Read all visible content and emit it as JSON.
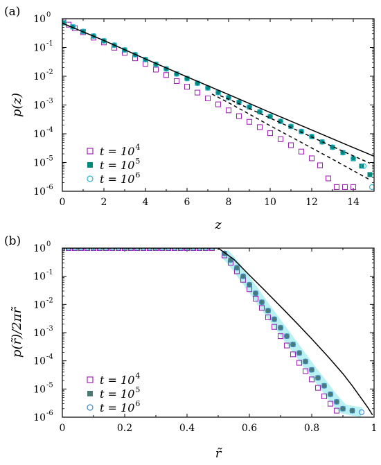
{
  "colors": {
    "purple": "#9c27b0",
    "teal": "#00897b",
    "light_blue": "#29b6d0",
    "slate": "#4a7a78",
    "blue_circle": "#3f88c5",
    "cyan_band": "#7fe6e8",
    "line": "#000000"
  },
  "chart_data": [
    {
      "type": "scatter",
      "panel_label": "(a)",
      "xlabel": "z",
      "ylabel": "p(z)",
      "log_y": true,
      "xlim": [
        0,
        15
      ],
      "ylim_exp": [
        -6,
        0
      ],
      "x_ticks": [
        "0",
        "2",
        "4",
        "6",
        "8",
        "10",
        "12",
        "14"
      ],
      "y_tick_exponents": [
        "0",
        "-1",
        "-2",
        "-3",
        "-4",
        "-5",
        "-6"
      ],
      "legend_position": "bottom-left",
      "series": [
        {
          "name": "t = 10^4",
          "label_base": "t = 10",
          "label_exp": "4",
          "marker": "open-square",
          "color": "purple",
          "points": [
            [
              0.05,
              0.82
            ],
            [
              0.3,
              0.62
            ],
            [
              0.6,
              0.47
            ],
            [
              1.0,
              0.34
            ],
            [
              1.5,
              0.22
            ],
            [
              2.0,
              0.15
            ],
            [
              2.5,
              0.098
            ],
            [
              3.0,
              0.065
            ],
            [
              3.5,
              0.042
            ],
            [
              4.0,
              0.027
            ],
            [
              4.5,
              0.017
            ],
            [
              5.0,
              0.011
            ],
            [
              5.5,
              0.0068
            ],
            [
              6.0,
              0.0043
            ],
            [
              6.5,
              0.0027
            ],
            [
              7.0,
              0.0017
            ],
            [
              7.5,
              0.00105
            ],
            [
              8.0,
              0.00065
            ],
            [
              8.5,
              0.00041
            ],
            [
              9.0,
              0.00026
            ],
            [
              9.5,
              0.00017
            ],
            [
              10.0,
              0.000105
            ],
            [
              10.5,
              6.5e-05
            ],
            [
              11.0,
              4e-05
            ],
            [
              11.5,
              2.4e-05
            ],
            [
              12.0,
              1.4e-05
            ],
            [
              12.4,
              8e-06
            ],
            [
              12.8,
              2.8e-06
            ],
            [
              13.2,
              1.4e-06
            ],
            [
              13.6,
              1.4e-06
            ],
            [
              14.0,
              1.4e-06
            ]
          ]
        },
        {
          "name": "t = 10^5",
          "label_base": "t = 10",
          "label_exp": "5",
          "marker": "filled-square",
          "color": "teal",
          "points": [
            [
              0.05,
              0.72
            ],
            [
              0.5,
              0.52
            ],
            [
              1.0,
              0.36
            ],
            [
              1.5,
              0.25
            ],
            [
              2.0,
              0.17
            ],
            [
              2.5,
              0.12
            ],
            [
              3.0,
              0.082
            ],
            [
              3.5,
              0.056
            ],
            [
              4.0,
              0.038
            ],
            [
              4.5,
              0.026
            ],
            [
              5.0,
              0.018
            ],
            [
              5.5,
              0.012
            ],
            [
              6.0,
              0.0083
            ],
            [
              6.5,
              0.0057
            ],
            [
              7.0,
              0.0039
            ],
            [
              7.5,
              0.0027
            ],
            [
              8.0,
              0.0018
            ],
            [
              8.5,
              0.00125
            ],
            [
              9.0,
              0.00085
            ],
            [
              9.5,
              0.00058
            ],
            [
              10.0,
              0.0004
            ],
            [
              10.5,
              0.00027
            ],
            [
              11.0,
              0.00018
            ],
            [
              11.5,
              0.00012
            ],
            [
              12.0,
              8e-05
            ],
            [
              12.5,
              5.2e-05
            ],
            [
              13.0,
              3.4e-05
            ],
            [
              13.5,
              2.2e-05
            ],
            [
              14.0,
              1.35e-05
            ],
            [
              14.4,
              7.5e-06
            ],
            [
              14.8,
              3.8e-06
            ]
          ]
        },
        {
          "name": "t = 10^6",
          "label_base": "t = 10",
          "label_exp": "6",
          "marker": "open-circle",
          "color": "light_blue",
          "points": [
            [
              0.05,
              0.72
            ],
            [
              0.5,
              0.52
            ],
            [
              1.0,
              0.36
            ],
            [
              1.5,
              0.25
            ],
            [
              2.0,
              0.17
            ],
            [
              2.5,
              0.12
            ],
            [
              3.0,
              0.082
            ],
            [
              3.5,
              0.056
            ],
            [
              4.0,
              0.038
            ],
            [
              4.5,
              0.026
            ],
            [
              5.0,
              0.018
            ],
            [
              5.5,
              0.012
            ],
            [
              6.0,
              0.0083
            ],
            [
              6.5,
              0.0057
            ],
            [
              7.0,
              0.0039
            ],
            [
              7.5,
              0.0027
            ],
            [
              8.0,
              0.0018
            ],
            [
              8.5,
              0.00125
            ],
            [
              9.0,
              0.00085
            ],
            [
              9.5,
              0.00058
            ],
            [
              10.0,
              0.0004
            ],
            [
              10.5,
              0.00027
            ],
            [
              11.0,
              0.00018
            ],
            [
              11.5,
              0.00012
            ],
            [
              12.0,
              8e-05
            ],
            [
              12.5,
              5.2e-05
            ],
            [
              13.0,
              3.4e-05
            ],
            [
              13.5,
              2.2e-05
            ],
            [
              14.0,
              1.4e-05
            ],
            [
              14.5,
              7.5e-06
            ],
            [
              14.9,
              1.4e-06
            ]
          ]
        }
      ],
      "lines": [
        {
          "style": "solid",
          "points": [
            [
              0,
              0.7
            ],
            [
              2,
              0.175
            ],
            [
              4,
              0.04
            ],
            [
              6,
              0.0095
            ],
            [
              8,
              0.0023
            ],
            [
              10,
              0.00055
            ],
            [
              12,
              0.000135
            ],
            [
              14,
              3.3e-05
            ],
            [
              15,
              1.65e-05
            ]
          ]
        },
        {
          "style": "dashed",
          "points": [
            [
              7.2,
              0.0024
            ],
            [
              8,
              0.0012
            ],
            [
              9,
              0.00048
            ],
            [
              10,
              0.00019
            ],
            [
              11,
              7.8e-05
            ],
            [
              12,
              3.2e-05
            ],
            [
              13,
              1.3e-05
            ],
            [
              14,
              5.2e-06
            ],
            [
              14.8,
              2.5e-06
            ]
          ]
        },
        {
          "style": "dashed",
          "points": [
            [
              7.6,
              0.0021
            ],
            [
              8,
              0.0016
            ],
            [
              9,
              0.00075
            ],
            [
              10,
              0.00035
            ],
            [
              11,
              0.000165
            ],
            [
              12,
              7.7e-05
            ],
            [
              13,
              3.6e-05
            ],
            [
              14,
              1.7e-05
            ],
            [
              14.8,
              9.5e-06
            ]
          ]
        }
      ]
    },
    {
      "type": "scatter",
      "panel_label": "(b)",
      "xlabel": "r̃",
      "ylabel": "p(r̃)/2πr̃",
      "log_y": true,
      "xlim": [
        0,
        1
      ],
      "ylim_exp": [
        -6,
        0
      ],
      "x_ticks": [
        "0",
        "0.2",
        "0.4",
        "0.6",
        "0.8",
        "1"
      ],
      "y_tick_exponents": [
        "0",
        "-1",
        "-2",
        "-3",
        "-4",
        "-5",
        "-6"
      ],
      "legend_position": "bottom-left",
      "series": [
        {
          "name": "t = 10^4",
          "label_base": "t = 10",
          "label_exp": "4",
          "marker": "open-square",
          "color": "purple",
          "points": [
            [
              0.52,
              0.55
            ],
            [
              0.54,
              0.3
            ],
            [
              0.56,
              0.15
            ],
            [
              0.58,
              0.075
            ],
            [
              0.6,
              0.035
            ],
            [
              0.62,
              0.016
            ],
            [
              0.64,
              0.0075
            ],
            [
              0.66,
              0.0035
            ],
            [
              0.68,
              0.0016
            ],
            [
              0.7,
              0.00075
            ],
            [
              0.72,
              0.00035
            ],
            [
              0.74,
              0.00017
            ],
            [
              0.76,
              8.5e-05
            ],
            [
              0.78,
              4.3e-05
            ],
            [
              0.8,
              2.2e-05
            ],
            [
              0.82,
              1.1e-05
            ],
            [
              0.84,
              5.5e-06
            ],
            [
              0.86,
              3e-06
            ],
            [
              0.88,
              1.7e-06
            ]
          ]
        },
        {
          "name": "t = 10^5",
          "label_base": "t = 10",
          "label_exp": "5",
          "marker": "filled-square",
          "color": "slate",
          "points": [
            [
              0.52,
              0.65
            ],
            [
              0.54,
              0.38
            ],
            [
              0.56,
              0.2
            ],
            [
              0.58,
              0.1
            ],
            [
              0.6,
              0.05
            ],
            [
              0.62,
              0.025
            ],
            [
              0.64,
              0.012
            ],
            [
              0.66,
              0.006
            ],
            [
              0.68,
              0.003
            ],
            [
              0.7,
              0.0015
            ],
            [
              0.72,
              0.00075
            ],
            [
              0.74,
              0.00038
            ],
            [
              0.76,
              0.00019
            ],
            [
              0.78,
              9.5e-05
            ],
            [
              0.8,
              4.8e-05
            ],
            [
              0.82,
              2.5e-05
            ],
            [
              0.84,
              1.3e-05
            ],
            [
              0.86,
              6.5e-06
            ],
            [
              0.88,
              3.5e-06
            ],
            [
              0.9,
              2e-06
            ],
            [
              0.93,
              1.7e-06
            ]
          ]
        },
        {
          "name": "t = 10^6",
          "label_base": "t = 10",
          "label_exp": "6",
          "marker": "open-circle",
          "color": "blue_circle",
          "points": [
            [
              0.52,
              0.65
            ],
            [
              0.54,
              0.38
            ],
            [
              0.56,
              0.2
            ],
            [
              0.58,
              0.1
            ],
            [
              0.6,
              0.05
            ],
            [
              0.62,
              0.025
            ],
            [
              0.64,
              0.012
            ],
            [
              0.66,
              0.006
            ],
            [
              0.68,
              0.003
            ],
            [
              0.7,
              0.0015
            ],
            [
              0.72,
              0.00075
            ],
            [
              0.74,
              0.00038
            ],
            [
              0.76,
              0.00019
            ],
            [
              0.78,
              9.5e-05
            ],
            [
              0.8,
              4.8e-05
            ],
            [
              0.82,
              2.5e-05
            ],
            [
              0.84,
              1.3e-05
            ],
            [
              0.86,
              6.5e-06
            ],
            [
              0.88,
              3.5e-06
            ],
            [
              0.9,
              2e-06
            ],
            [
              0.93,
              1.7e-06
            ],
            [
              0.96,
              1.5e-06
            ]
          ]
        }
      ],
      "lines": [
        {
          "style": "solid",
          "points": [
            [
              0,
              1
            ],
            [
              0.5,
              1
            ],
            [
              0.55,
              0.4
            ],
            [
              0.6,
              0.11
            ],
            [
              0.65,
              0.031
            ],
            [
              0.7,
              0.0085
            ],
            [
              0.75,
              0.0023
            ],
            [
              0.8,
              0.0006
            ],
            [
              0.85,
              0.00015
            ],
            [
              0.9,
              3.5e-05
            ],
            [
              0.93,
              1.3e-05
            ],
            [
              0.96,
              4.5e-06
            ],
            [
              0.98,
              2.2e-06
            ],
            [
              0.995,
              1.2e-06
            ]
          ]
        }
      ]
    }
  ]
}
